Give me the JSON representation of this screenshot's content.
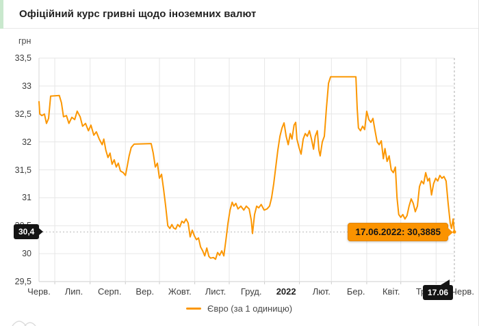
{
  "header": {
    "title": "Офіційний курс гривні щодо іноземних валют"
  },
  "axis": {
    "unit": "грн"
  },
  "legend": {
    "label": "Євро (за 1 одиницю)"
  },
  "markers": {
    "value_label": "30,4",
    "date_label": "17.06",
    "tooltip": "17.06.2022: 30,3885"
  },
  "colors": {
    "accent": "#fb9600",
    "tooltip_bg": "#fb9300",
    "tooltip_border": "#e28500",
    "marker_bg": "#141414",
    "grid": "#e6e6e6",
    "axis_line": "#cdcdcd",
    "header_accent": "#c9e8cd"
  },
  "chart_data": {
    "type": "line",
    "title": "Офіційний курс гривні щодо іноземних валют",
    "xlabel": "",
    "ylabel": "грн",
    "ylim": [
      29.5,
      33.5
    ],
    "grid": true,
    "legend_position": "bottom",
    "y_ticks": [
      {
        "label": "33,5",
        "value": 33.5
      },
      {
        "label": "33",
        "value": 33.0
      },
      {
        "label": "32,5",
        "value": 32.5
      },
      {
        "label": "32",
        "value": 32.0
      },
      {
        "label": "31,5",
        "value": 31.5
      },
      {
        "label": "31",
        "value": 31.0
      },
      {
        "label": "30,5",
        "value": 30.5
      },
      {
        "label": "30",
        "value": 30.0
      },
      {
        "label": "29,5",
        "value": 29.5
      }
    ],
    "x_ticks": [
      {
        "label": "Черв.",
        "t": 0.0
      },
      {
        "label": "Лип.",
        "t": 0.084
      },
      {
        "label": "Серп.",
        "t": 0.17
      },
      {
        "label": "Вер.",
        "t": 0.255
      },
      {
        "label": "Жовт.",
        "t": 0.339
      },
      {
        "label": "Лист.",
        "t": 0.425
      },
      {
        "label": "Груд.",
        "t": 0.511
      },
      {
        "label": "2022",
        "t": 0.595,
        "bold": true
      },
      {
        "label": "Лют.",
        "t": 0.68
      },
      {
        "label": "Бер.",
        "t": 0.763
      },
      {
        "label": "Квіт.",
        "t": 0.848
      },
      {
        "label": "Трав.",
        "t": 0.934
      },
      {
        "label": "Черв.",
        "t": 1.02
      }
    ],
    "x_gridlines_t": [
      0.038,
      0.123,
      0.208,
      0.29,
      0.375,
      0.458,
      0.543,
      0.627,
      0.704,
      0.789,
      0.871,
      0.956
    ],
    "current_point": {
      "date": "17.06.2022",
      "value": 30.3885,
      "t": 1.0
    },
    "series": [
      {
        "name": "Євро (за 1 одиницю)",
        "color": "#fb9600",
        "points": [
          [
            0.0,
            32.72
          ],
          [
            0.002,
            32.5
          ],
          [
            0.007,
            32.47
          ],
          [
            0.013,
            32.5
          ],
          [
            0.018,
            32.33
          ],
          [
            0.023,
            32.42
          ],
          [
            0.028,
            32.82
          ],
          [
            0.049,
            32.83
          ],
          [
            0.054,
            32.7
          ],
          [
            0.059,
            32.45
          ],
          [
            0.066,
            32.47
          ],
          [
            0.072,
            32.33
          ],
          [
            0.079,
            32.44
          ],
          [
            0.086,
            32.4
          ],
          [
            0.092,
            32.55
          ],
          [
            0.099,
            32.45
          ],
          [
            0.105,
            32.28
          ],
          [
            0.112,
            32.33
          ],
          [
            0.119,
            32.2
          ],
          [
            0.125,
            32.3
          ],
          [
            0.132,
            32.12
          ],
          [
            0.138,
            32.18
          ],
          [
            0.145,
            32.05
          ],
          [
            0.152,
            31.95
          ],
          [
            0.156,
            32.05
          ],
          [
            0.161,
            31.85
          ],
          [
            0.166,
            31.72
          ],
          [
            0.171,
            31.8
          ],
          [
            0.176,
            31.6
          ],
          [
            0.181,
            31.68
          ],
          [
            0.186,
            31.55
          ],
          [
            0.191,
            31.62
          ],
          [
            0.196,
            31.48
          ],
          [
            0.203,
            31.45
          ],
          [
            0.208,
            31.4
          ],
          [
            0.212,
            31.55
          ],
          [
            0.217,
            31.75
          ],
          [
            0.222,
            31.9
          ],
          [
            0.229,
            31.96
          ],
          [
            0.27,
            31.97
          ],
          [
            0.275,
            31.8
          ],
          [
            0.28,
            31.55
          ],
          [
            0.285,
            31.62
          ],
          [
            0.29,
            31.35
          ],
          [
            0.295,
            31.42
          ],
          [
            0.3,
            31.15
          ],
          [
            0.305,
            30.85
          ],
          [
            0.31,
            30.5
          ],
          [
            0.315,
            30.45
          ],
          [
            0.32,
            30.52
          ],
          [
            0.324,
            30.46
          ],
          [
            0.329,
            30.44
          ],
          [
            0.334,
            30.52
          ],
          [
            0.339,
            30.48
          ],
          [
            0.344,
            30.58
          ],
          [
            0.349,
            30.55
          ],
          [
            0.354,
            30.62
          ],
          [
            0.359,
            30.55
          ],
          [
            0.364,
            30.3
          ],
          [
            0.369,
            30.42
          ],
          [
            0.374,
            30.32
          ],
          [
            0.379,
            30.25
          ],
          [
            0.384,
            30.28
          ],
          [
            0.389,
            30.12
          ],
          [
            0.394,
            30.05
          ],
          [
            0.399,
            29.96
          ],
          [
            0.404,
            30.1
          ],
          [
            0.409,
            29.95
          ],
          [
            0.413,
            29.92
          ],
          [
            0.42,
            29.93
          ],
          [
            0.425,
            29.9
          ],
          [
            0.43,
            30.02
          ],
          [
            0.435,
            29.97
          ],
          [
            0.44,
            30.05
          ],
          [
            0.445,
            29.96
          ],
          [
            0.45,
            30.25
          ],
          [
            0.455,
            30.55
          ],
          [
            0.46,
            30.78
          ],
          [
            0.465,
            30.92
          ],
          [
            0.469,
            30.85
          ],
          [
            0.474,
            30.9
          ],
          [
            0.479,
            30.8
          ],
          [
            0.486,
            30.85
          ],
          [
            0.493,
            30.78
          ],
          [
            0.499,
            30.85
          ],
          [
            0.506,
            30.8
          ],
          [
            0.511,
            30.6
          ],
          [
            0.514,
            30.36
          ],
          [
            0.519,
            30.7
          ],
          [
            0.524,
            30.85
          ],
          [
            0.529,
            30.82
          ],
          [
            0.535,
            30.88
          ],
          [
            0.542,
            30.78
          ],
          [
            0.549,
            30.8
          ],
          [
            0.555,
            30.85
          ],
          [
            0.56,
            31.0
          ],
          [
            0.565,
            31.25
          ],
          [
            0.57,
            31.55
          ],
          [
            0.575,
            31.85
          ],
          [
            0.58,
            32.1
          ],
          [
            0.585,
            32.25
          ],
          [
            0.59,
            32.34
          ],
          [
            0.595,
            32.1
          ],
          [
            0.6,
            31.95
          ],
          [
            0.605,
            32.15
          ],
          [
            0.609,
            32.05
          ],
          [
            0.614,
            32.3
          ],
          [
            0.618,
            32.35
          ],
          [
            0.621,
            32.05
          ],
          [
            0.626,
            31.9
          ],
          [
            0.631,
            31.78
          ],
          [
            0.636,
            32.05
          ],
          [
            0.641,
            32.15
          ],
          [
            0.646,
            32.1
          ],
          [
            0.651,
            32.2
          ],
          [
            0.656,
            32.05
          ],
          [
            0.661,
            31.87
          ],
          [
            0.665,
            32.1
          ],
          [
            0.67,
            32.2
          ],
          [
            0.674,
            31.85
          ],
          [
            0.677,
            31.75
          ],
          [
            0.682,
            32.0
          ],
          [
            0.687,
            32.1
          ],
          [
            0.692,
            32.6
          ],
          [
            0.697,
            33.05
          ],
          [
            0.702,
            33.165
          ],
          [
            0.763,
            33.165
          ],
          [
            0.766,
            32.6
          ],
          [
            0.769,
            32.25
          ],
          [
            0.774,
            32.2
          ],
          [
            0.779,
            32.28
          ],
          [
            0.784,
            32.22
          ],
          [
            0.789,
            32.55
          ],
          [
            0.794,
            32.4
          ],
          [
            0.799,
            32.35
          ],
          [
            0.804,
            32.42
          ],
          [
            0.809,
            32.2
          ],
          [
            0.814,
            32.0
          ],
          [
            0.819,
            31.95
          ],
          [
            0.824,
            32.02
          ],
          [
            0.829,
            31.7
          ],
          [
            0.833,
            31.88
          ],
          [
            0.838,
            31.65
          ],
          [
            0.843,
            31.75
          ],
          [
            0.848,
            31.5
          ],
          [
            0.853,
            31.45
          ],
          [
            0.858,
            31.55
          ],
          [
            0.862,
            31.0
          ],
          [
            0.866,
            30.7
          ],
          [
            0.871,
            30.65
          ],
          [
            0.876,
            30.7
          ],
          [
            0.881,
            30.62
          ],
          [
            0.886,
            30.68
          ],
          [
            0.891,
            30.85
          ],
          [
            0.896,
            30.98
          ],
          [
            0.901,
            30.9
          ],
          [
            0.906,
            30.75
          ],
          [
            0.911,
            30.85
          ],
          [
            0.916,
            31.2
          ],
          [
            0.921,
            31.3
          ],
          [
            0.926,
            31.25
          ],
          [
            0.931,
            31.45
          ],
          [
            0.936,
            31.3
          ],
          [
            0.94,
            31.35
          ],
          [
            0.945,
            31.05
          ],
          [
            0.95,
            31.25
          ],
          [
            0.955,
            31.35
          ],
          [
            0.96,
            31.3
          ],
          [
            0.965,
            31.4
          ],
          [
            0.97,
            31.35
          ],
          [
            0.975,
            31.38
          ],
          [
            0.98,
            31.3
          ],
          [
            0.985,
            30.9
          ],
          [
            0.99,
            30.55
          ],
          [
            0.993,
            30.45
          ],
          [
            0.997,
            30.62
          ],
          [
            1.0,
            30.3885
          ]
        ]
      }
    ]
  }
}
